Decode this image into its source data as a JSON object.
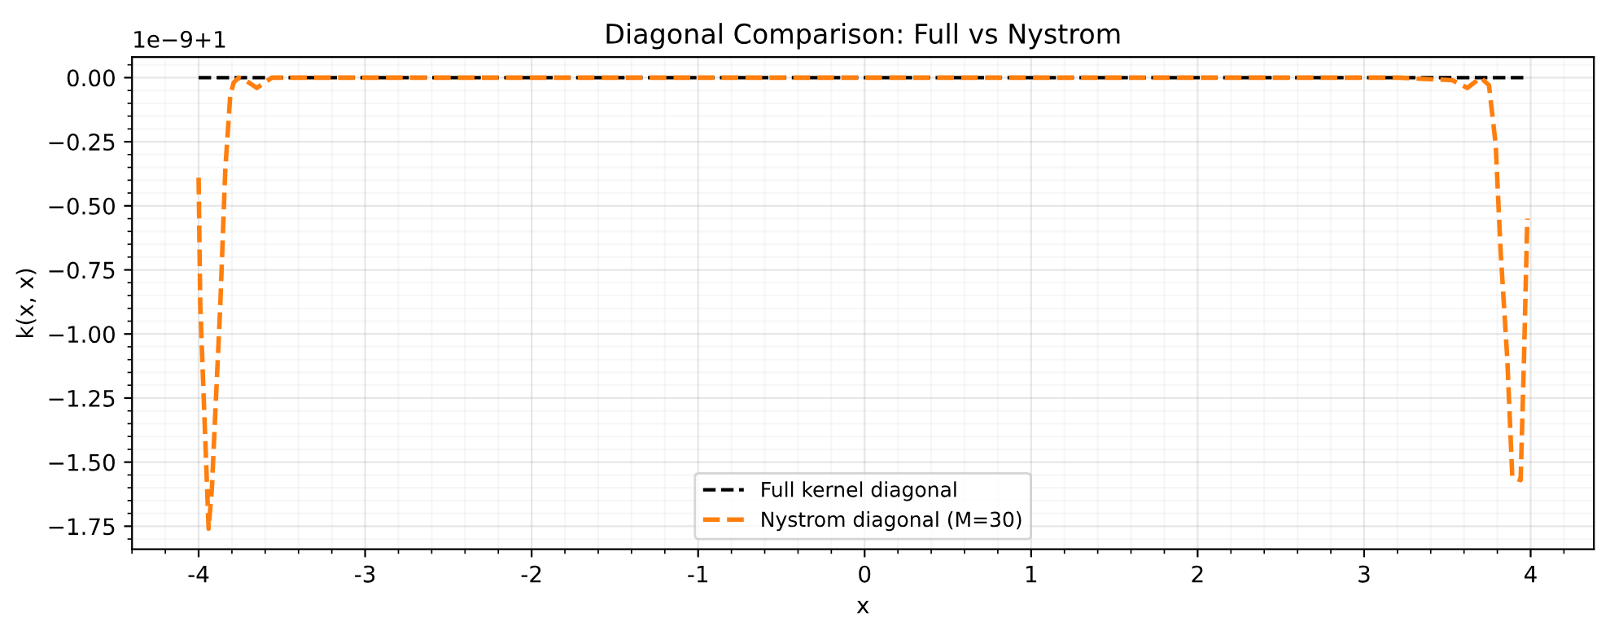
{
  "chart_data": {
    "type": "line",
    "title": "Diagonal Comparison: Full vs Nystrom",
    "xlabel": "x",
    "ylabel": "k(x, x)",
    "annotations": [
      "1e−9+1"
    ],
    "series": [
      {
        "name": "Full kernel diagonal",
        "color": "#000000",
        "line_style": "dashed",
        "x": [
          -4,
          3.98
        ],
        "values": [
          0,
          0
        ]
      },
      {
        "name": "Nystrom diagonal (M=30)",
        "color": "#ff7f0e",
        "line_style": "dashed",
        "x": [
          -4,
          -3.99,
          -3.94,
          -3.92,
          -3.9,
          -3.87,
          -3.84,
          -3.81,
          -3.79,
          -3.76,
          -3.72,
          -3.65,
          -3.56,
          -3.4,
          -3.0,
          0,
          3.0,
          3.21,
          3.53,
          3.62,
          3.7,
          3.75,
          3.79,
          3.82,
          3.86,
          3.89,
          3.94,
          3.96,
          3.98
        ],
        "values": [
          -0.39,
          -0.89,
          -1.76,
          -1.6,
          -1.31,
          -0.89,
          -0.36,
          -0.07,
          -0.02,
          0,
          -0.01,
          -0.04,
          0,
          0,
          0,
          0,
          0,
          0,
          -0.01,
          -0.04,
          0,
          -0.03,
          -0.26,
          -0.68,
          -1.1,
          -1.56,
          -1.57,
          -1.1,
          -0.55
        ]
      }
    ],
    "xlim": [
      -4.4,
      4.38
    ],
    "ylim": [
      -1.84,
      0.08
    ],
    "xticks": [
      -4,
      -3,
      -2,
      -1,
      0,
      1,
      2,
      3,
      4
    ],
    "yticks": [
      {
        "value": 0,
        "label": "0.00"
      },
      {
        "value": -0.25,
        "label": "−0.25"
      },
      {
        "value": -0.5,
        "label": "−0.50"
      },
      {
        "value": -0.75,
        "label": "−0.75"
      },
      {
        "value": -1.0,
        "label": "−1.00"
      },
      {
        "value": -1.25,
        "label": "−1.25"
      },
      {
        "value": -1.5,
        "label": "−1.50"
      },
      {
        "value": -1.75,
        "label": "−1.75"
      }
    ],
    "grid": true,
    "legend": "bottom"
  }
}
